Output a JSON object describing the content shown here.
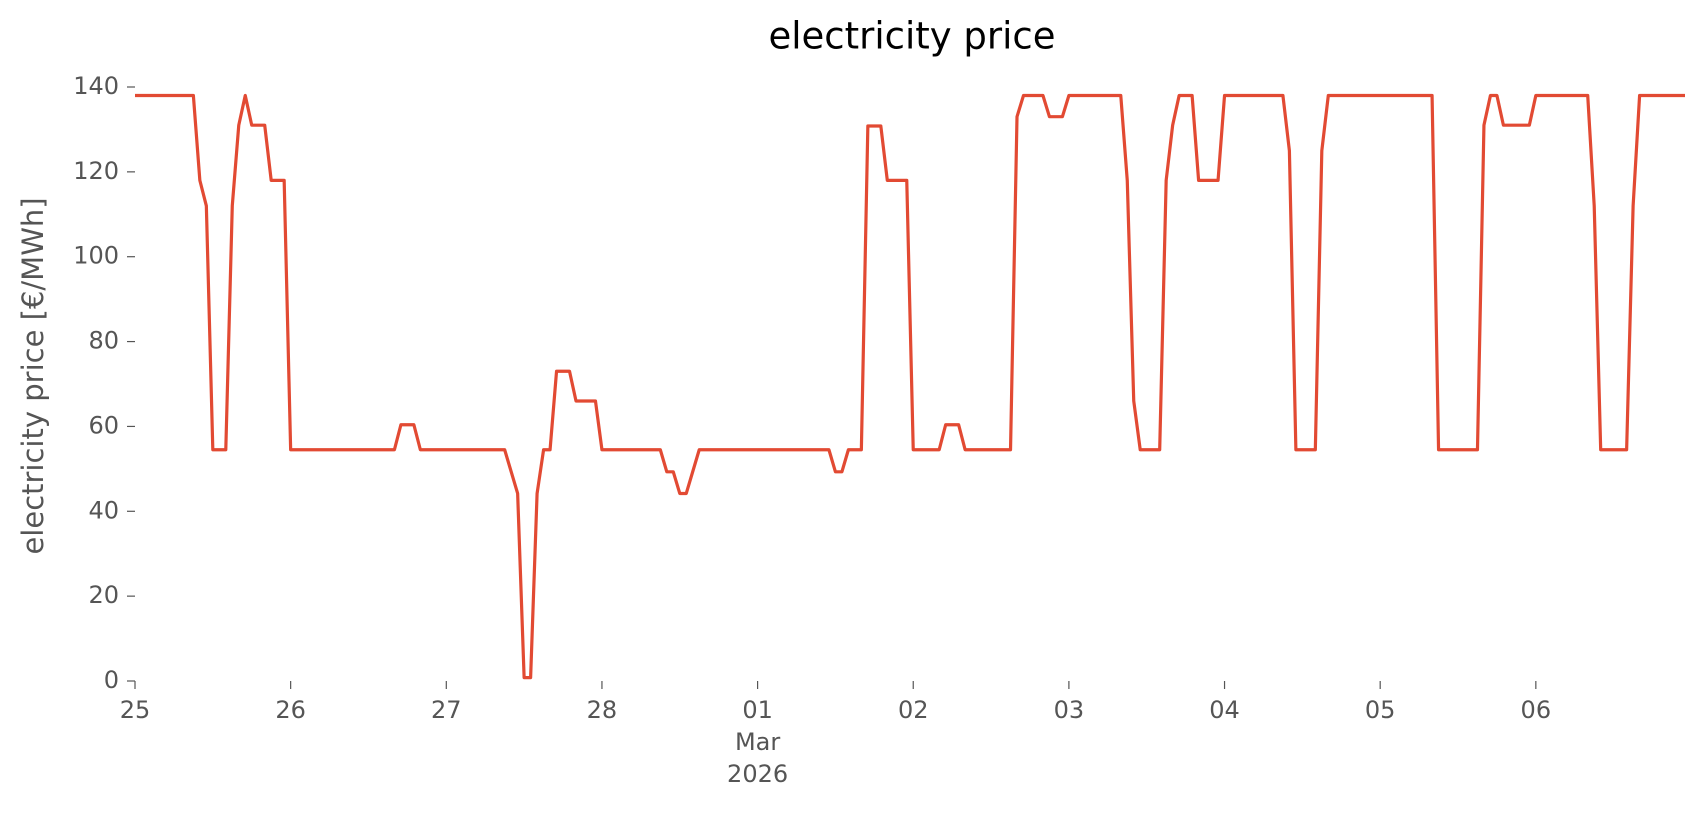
{
  "chart_data": {
    "type": "line",
    "title": "electricity price",
    "ylabel": "electricity price [€/MWh]",
    "x": [
      "2026-02-25T00:00",
      "2026-02-25T09:00",
      "2026-02-25T10:00",
      "2026-02-25T11:00",
      "2026-02-25T12:00",
      "2026-02-25T14:00",
      "2026-02-25T15:00",
      "2026-02-25T16:00",
      "2026-02-25T17:00",
      "2026-02-25T18:00",
      "2026-02-25T20:00",
      "2026-02-25T21:00",
      "2026-02-25T23:00",
      "2026-02-26T00:00",
      "2026-02-26T16:00",
      "2026-02-26T17:00",
      "2026-02-26T19:00",
      "2026-02-26T20:00",
      "2026-02-27T09:00",
      "2026-02-27T11:00",
      "2026-02-27T12:00",
      "2026-02-27T13:00",
      "2026-02-27T14:00",
      "2026-02-27T15:00",
      "2026-02-27T16:00",
      "2026-02-27T17:00",
      "2026-02-27T19:00",
      "2026-02-27T20:00",
      "2026-02-27T23:00",
      "2026-02-28T00:00",
      "2026-02-28T09:00",
      "2026-02-28T10:00",
      "2026-02-28T11:00",
      "2026-02-28T12:00",
      "2026-02-28T13:00",
      "2026-02-28T15:00",
      "2026-03-01T11:00",
      "2026-03-01T12:00",
      "2026-03-01T13:00",
      "2026-03-01T14:00",
      "2026-03-01T16:00",
      "2026-03-01T17:00",
      "2026-03-01T19:00",
      "2026-03-01T20:00",
      "2026-03-01T23:00",
      "2026-03-02T00:00",
      "2026-03-02T04:00",
      "2026-03-02T05:00",
      "2026-03-02T07:00",
      "2026-03-02T08:00",
      "2026-03-02T15:00",
      "2026-03-02T16:00",
      "2026-03-02T17:00",
      "2026-03-02T20:00",
      "2026-03-02T21:00",
      "2026-03-02T23:00",
      "2026-03-03T00:00",
      "2026-03-03T08:00",
      "2026-03-03T09:00",
      "2026-03-03T10:00",
      "2026-03-03T11:00",
      "2026-03-03T14:00",
      "2026-03-03T15:00",
      "2026-03-03T16:00",
      "2026-03-03T17:00",
      "2026-03-03T19:00",
      "2026-03-03T20:00",
      "2026-03-03T23:00",
      "2026-03-04T00:00",
      "2026-03-04T09:00",
      "2026-03-04T10:00",
      "2026-03-04T11:00",
      "2026-03-04T14:00",
      "2026-03-04T15:00",
      "2026-03-04T16:00",
      "2026-03-05T08:00",
      "2026-03-05T09:00",
      "2026-03-05T15:00",
      "2026-03-05T16:00",
      "2026-03-05T17:00",
      "2026-03-05T18:00",
      "2026-03-05T19:00",
      "2026-03-05T23:00",
      "2026-03-06T00:00",
      "2026-03-06T08:00",
      "2026-03-06T09:00",
      "2026-03-06T10:00",
      "2026-03-06T14:00",
      "2026-03-06T15:00",
      "2026-03-06T16:00",
      "2026-03-06T23:00"
    ],
    "series": [
      {
        "color": "#E24A33",
        "values": [
          138,
          138,
          118,
          112,
          54.5,
          54.5,
          112,
          131,
          138,
          131,
          131,
          118,
          118,
          54.5,
          54.5,
          60.4,
          60.4,
          54.5,
          54.5,
          44.2,
          0.8,
          0.8,
          44.2,
          54.5,
          54.5,
          73,
          73,
          66,
          66,
          54.5,
          54.5,
          49.3,
          49.3,
          44.2,
          44.2,
          54.5,
          54.5,
          49.3,
          49.3,
          54.5,
          54.5,
          130.8,
          130.8,
          118,
          118,
          54.5,
          54.5,
          60.4,
          60.4,
          54.5,
          54.5,
          133,
          138,
          138,
          133,
          133,
          138,
          138,
          118,
          66,
          54.5,
          54.5,
          118,
          131,
          138,
          138,
          118,
          118,
          138,
          138,
          125,
          54.5,
          54.5,
          125,
          138,
          138,
          54.5,
          54.5,
          131,
          138,
          138,
          131,
          131,
          138,
          138,
          112,
          54.5,
          54.5,
          112,
          138,
          138
        ]
      }
    ],
    "xlim": [
      "2026-02-25T00:00",
      "2026-03-06T23:00"
    ],
    "xticks": [
      {
        "value": "2026-02-25",
        "label": "25"
      },
      {
        "value": "2026-02-26",
        "label": "26"
      },
      {
        "value": "2026-02-27",
        "label": "27"
      },
      {
        "value": "2026-02-28",
        "label": "28"
      },
      {
        "value": "2026-03-01",
        "label": "01\nMar\n2026"
      },
      {
        "value": "2026-03-02",
        "label": "02"
      },
      {
        "value": "2026-03-03",
        "label": "03"
      },
      {
        "value": "2026-03-04",
        "label": "04"
      },
      {
        "value": "2026-03-05",
        "label": "05"
      },
      {
        "value": "2026-03-06",
        "label": "06"
      }
    ],
    "ylim": [
      0,
      140
    ],
    "yticks": [
      0,
      20,
      40,
      60,
      80,
      100,
      120,
      140
    ],
    "grid": false
  }
}
